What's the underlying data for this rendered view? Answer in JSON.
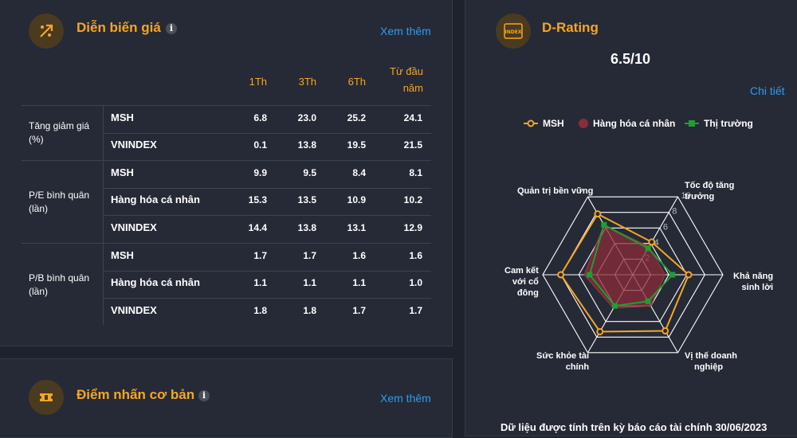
{
  "price_card": {
    "title": "Diễn biến giá",
    "info": "i",
    "more": "Xem thêm",
    "columns": [
      "1Th",
      "3Th",
      "6Th",
      "Từ đầu",
      "năm"
    ],
    "groups": [
      {
        "label_line1": "Tăng giảm giá",
        "label_line2": "(%)"
      },
      {
        "label_line1": "P/E bình quân",
        "label_line2": "(lần)"
      },
      {
        "label_line1": "P/B bình quân",
        "label_line2": "(lần)"
      }
    ],
    "rows": [
      {
        "name": "MSH",
        "values": [
          "6.8",
          "23.0",
          "25.2",
          "24.1"
        ]
      },
      {
        "name": "VNINDEX",
        "values": [
          "0.1",
          "13.8",
          "19.5",
          "21.5"
        ]
      },
      {
        "name": "MSH",
        "values": [
          "9.9",
          "9.5",
          "8.4",
          "8.1"
        ]
      },
      {
        "name": "Hàng hóa cá nhân",
        "values": [
          "15.3",
          "13.5",
          "10.9",
          "10.2"
        ]
      },
      {
        "name": "VNINDEX",
        "values": [
          "14.4",
          "13.8",
          "13.1",
          "12.9"
        ]
      },
      {
        "name": "MSH",
        "values": [
          "1.7",
          "1.7",
          "1.6",
          "1.6"
        ]
      },
      {
        "name": "Hàng hóa cá nhân",
        "values": [
          "1.1",
          "1.1",
          "1.1",
          "1.0"
        ]
      },
      {
        "name": "VNINDEX",
        "values": [
          "1.8",
          "1.8",
          "1.7",
          "1.7"
        ]
      }
    ]
  },
  "basic_card": {
    "title": "Điểm nhấn cơ bản",
    "info": "i",
    "more": "Xem thêm"
  },
  "drating_card": {
    "title": "D-Rating",
    "icon_text": "INDEX",
    "score": "6.5/10",
    "detail": "Chi tiết",
    "footnote": "Dữ liệu được tính trên kỳ báo cáo tài chính 30/06/2023"
  },
  "colors": {
    "accent": "#f5a623",
    "link": "#2c9cf0",
    "msh": "#f5a623",
    "sector": "#8b2c3a",
    "market": "#1f9e2f"
  },
  "chart_data": {
    "type": "radar",
    "axes": [
      {
        "line1": "Tốc độ tăng",
        "line2": "trưởng"
      },
      {
        "line1": "Khả năng",
        "line2": "sinh lời"
      },
      {
        "line1": "Vị thế doanh",
        "line2": "nghiệp"
      },
      {
        "line1": "Sức khỏe tài",
        "line2": "chính"
      },
      {
        "line1": "Cam kết",
        "line2": "với cổ",
        "line3": "đông"
      },
      {
        "line1": "Quản trị bền vững",
        "line2": ""
      }
    ],
    "ticks": [
      "2",
      "4",
      "6",
      "8",
      "10"
    ],
    "range": [
      0,
      10
    ],
    "legend": [
      "MSH",
      "Hàng hóa cá nhân",
      "Thị trường"
    ],
    "series": [
      {
        "name": "MSH",
        "values": [
          4.2,
          6.2,
          7.2,
          7.3,
          8.0,
          7.8
        ]
      },
      {
        "name": "Hàng hóa cá nhân",
        "values": [
          3.6,
          3.6,
          4.0,
          4.3,
          5.4,
          6.4
        ]
      },
      {
        "name": "Thị trường",
        "values": [
          3.4,
          4.4,
          3.4,
          4.0,
          4.8,
          6.4
        ]
      }
    ],
    "legend_position": "top"
  }
}
